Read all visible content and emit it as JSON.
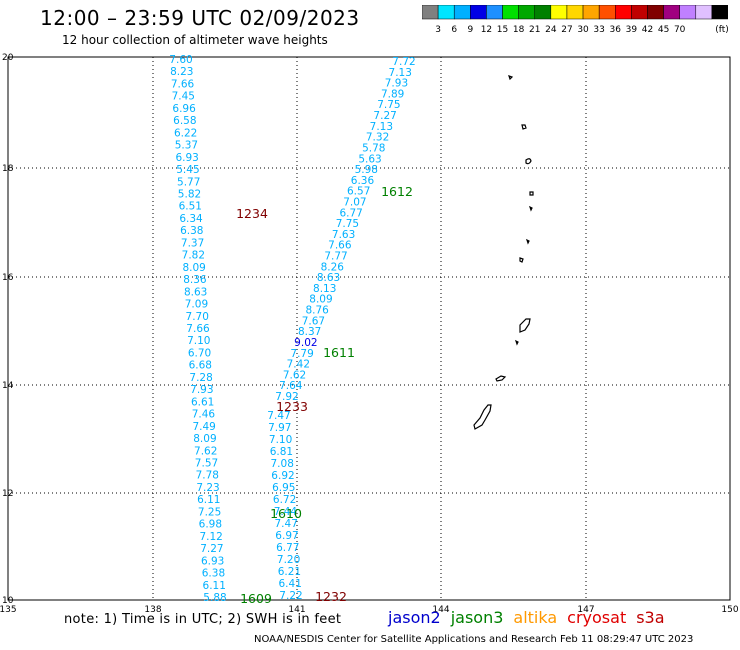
{
  "header": {
    "title": "12:00 – 23:59 UTC 02/09/2023",
    "subtitle": "12 hour collection of altimeter wave heights"
  },
  "colorbar": {
    "colors": [
      "#808080",
      "#00e5ff",
      "#00b0ff",
      "#0000e6",
      "#1e90ff",
      "#00e000",
      "#00a800",
      "#008000",
      "#ffff00",
      "#ffd700",
      "#ffa500",
      "#ff5000",
      "#ff0000",
      "#c00000",
      "#800000",
      "#a00080",
      "#c080ff",
      "#e0c0ff",
      "#000000"
    ],
    "labels": [
      "3",
      "6",
      "9",
      "12",
      "15",
      "18",
      "21",
      "24",
      "27",
      "30",
      "33",
      "36",
      "39",
      "42",
      "45",
      "70",
      "(ft)"
    ]
  },
  "axes": {
    "x_ticks": [
      "135",
      "138",
      "141",
      "144",
      "147",
      "150"
    ],
    "y_ticks": [
      "20",
      "18",
      "16",
      "14",
      "12",
      "10"
    ]
  },
  "tracks": [
    {
      "label": "1234",
      "color": "#800000"
    },
    {
      "label": "1612",
      "color": "#008000"
    },
    {
      "label": "1611",
      "color": "#008000"
    },
    {
      "label": "1233",
      "color": "#800000"
    },
    {
      "label": "1610",
      "color": "#008000"
    },
    {
      "label": "1609",
      "color": "#008000"
    },
    {
      "label": "1232",
      "color": "#800000"
    }
  ],
  "wave_heights": {
    "left_track": [
      "7.60",
      "8.23",
      "7.66",
      "7.45",
      "6.96",
      "6.58",
      "6.22",
      "5.37",
      "6.93",
      "5.45",
      "5.77",
      "5.82",
      "6.51",
      "6.34",
      "6.38",
      "7.37",
      "7.82",
      "8.09",
      "8.36",
      "8.63",
      "7.09",
      "7.70",
      "7.66",
      "7.10",
      "6.70",
      "6.68",
      "7.28",
      "7.93",
      "6.61",
      "7.46",
      "7.49",
      "8.09",
      "7.62",
      "7.57",
      "7.78",
      "7.23",
      "6.11",
      "7.25",
      "6.98",
      "7.12",
      "7.27",
      "6.93",
      "6.38",
      "6.11",
      "5.88"
    ],
    "upper_right_track": [
      "7.72",
      "7.13",
      "7.93",
      "7.89",
      "7.75",
      "7.27",
      "7.13",
      "7.32",
      "5.78",
      "5.63",
      "5.98",
      "6.36",
      "6.57",
      "7.07",
      "6.77",
      "7.75",
      "7.63",
      "7.66",
      "7.77",
      "8.26",
      "8.63",
      "8.13",
      "8.09",
      "8.76",
      "7.67",
      "8.37",
      "9.02",
      "7.79",
      "7.42",
      "7.62",
      "7.64",
      "7.92"
    ],
    "lower_right_track": [
      "7.47",
      "7.97",
      "7.10",
      "6.81",
      "7.08",
      "6.92",
      "6.95",
      "6.72",
      "7.44",
      "7.47",
      "6.97",
      "6.77",
      "7.20",
      "6.21",
      "6.41",
      "7.22"
    ]
  },
  "footer": {
    "note": "note:  1) Time is in UTC;  2) SWH is in feet",
    "credit": "NOAA/NESDIS Center for Satellite Applications and Research    Feb 11 08:29:47 UTC 2023",
    "satellites": [
      {
        "name": "jason2",
        "color": "#0000cc"
      },
      {
        "name": "jason3",
        "color": "#008000"
      },
      {
        "name": "altika",
        "color": "#ff9900"
      },
      {
        "name": "cryosat",
        "color": "#e00000"
      },
      {
        "name": "s3a",
        "color": "#c00000"
      }
    ]
  }
}
